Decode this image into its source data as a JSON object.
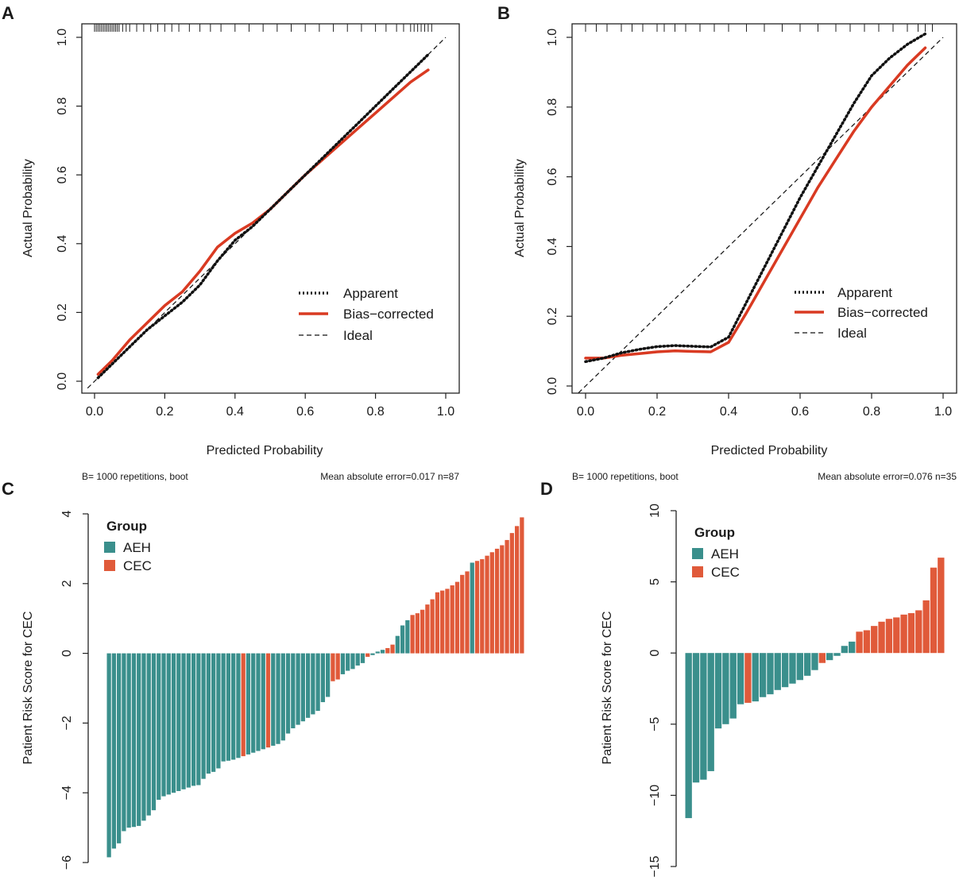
{
  "panels": {
    "A": {
      "letter": "A"
    },
    "B": {
      "letter": "B"
    },
    "C": {
      "letter": "C"
    },
    "D": {
      "letter": "D"
    }
  },
  "chart_data": [
    {
      "id": "A",
      "type": "line",
      "xlabel": "Predicted Probability",
      "ylabel": "Actual Probability",
      "xlim": [
        0,
        1
      ],
      "ylim": [
        0,
        1
      ],
      "xticks": [
        "0.0",
        "0.2",
        "0.4",
        "0.6",
        "0.8",
        "1.0"
      ],
      "yticks": [
        "0.0",
        "0.2",
        "0.4",
        "0.6",
        "0.8",
        "1.0"
      ],
      "legend": [
        "Apparent",
        "Bias−corrected",
        "Ideal"
      ],
      "footer_left": "B= 1000 repetitions, boot",
      "footer_right": "Mean absolute error=0.017 n=87",
      "series": [
        {
          "name": "Apparent",
          "x": [
            0.01,
            0.05,
            0.1,
            0.15,
            0.2,
            0.25,
            0.3,
            0.35,
            0.4,
            0.45,
            0.5,
            0.55,
            0.6,
            0.65,
            0.7,
            0.75,
            0.8,
            0.85,
            0.9,
            0.95
          ],
          "y": [
            0.01,
            0.05,
            0.1,
            0.15,
            0.19,
            0.23,
            0.28,
            0.35,
            0.41,
            0.45,
            0.5,
            0.55,
            0.6,
            0.65,
            0.7,
            0.75,
            0.8,
            0.85,
            0.9,
            0.95
          ]
        },
        {
          "name": "Bias−corrected",
          "x": [
            0.01,
            0.05,
            0.1,
            0.15,
            0.2,
            0.25,
            0.3,
            0.35,
            0.4,
            0.45,
            0.5,
            0.55,
            0.6,
            0.65,
            0.7,
            0.75,
            0.8,
            0.85,
            0.9,
            0.95
          ],
          "y": [
            0.02,
            0.06,
            0.12,
            0.17,
            0.22,
            0.26,
            0.32,
            0.39,
            0.43,
            0.46,
            0.5,
            0.55,
            0.6,
            0.645,
            0.69,
            0.735,
            0.78,
            0.825,
            0.87,
            0.905
          ]
        },
        {
          "name": "Ideal",
          "x": [
            0,
            1
          ],
          "y": [
            0,
            1
          ]
        }
      ],
      "rug": [
        0.0,
        0.005,
        0.01,
        0.015,
        0.02,
        0.025,
        0.03,
        0.035,
        0.04,
        0.045,
        0.05,
        0.055,
        0.06,
        0.065,
        0.07,
        0.08,
        0.09,
        0.1,
        0.12,
        0.14,
        0.16,
        0.18,
        0.2,
        0.22,
        0.24,
        0.27,
        0.3,
        0.33,
        0.36,
        0.4,
        0.44,
        0.48,
        0.52,
        0.56,
        0.6,
        0.64,
        0.68,
        0.72,
        0.76,
        0.8,
        0.83,
        0.86,
        0.88,
        0.9,
        0.91,
        0.92,
        0.93,
        0.94,
        0.95,
        0.96
      ]
    },
    {
      "id": "B",
      "type": "line",
      "xlabel": "Predicted Probability",
      "ylabel": "Actual Probability",
      "xlim": [
        0,
        1
      ],
      "ylim": [
        0,
        1
      ],
      "xticks": [
        "0.0",
        "0.2",
        "0.4",
        "0.6",
        "0.8",
        "1.0"
      ],
      "yticks": [
        "0.0",
        "0.2",
        "0.4",
        "0.6",
        "0.8",
        "1.0"
      ],
      "legend": [
        "Apparent",
        "Bias−corrected",
        "Ideal"
      ],
      "footer_left": "B= 1000 repetitions, boot",
      "footer_right": "Mean absolute error=0.076 n=35",
      "series": [
        {
          "name": "Apparent",
          "x": [
            0.0,
            0.05,
            0.1,
            0.15,
            0.2,
            0.25,
            0.3,
            0.35,
            0.4,
            0.45,
            0.5,
            0.55,
            0.6,
            0.65,
            0.7,
            0.75,
            0.8,
            0.85,
            0.9,
            0.95
          ],
          "y": [
            0.07,
            0.08,
            0.095,
            0.105,
            0.113,
            0.116,
            0.114,
            0.112,
            0.14,
            0.24,
            0.34,
            0.44,
            0.54,
            0.63,
            0.72,
            0.81,
            0.89,
            0.94,
            0.98,
            1.01
          ]
        },
        {
          "name": "Bias−corrected",
          "x": [
            0.0,
            0.05,
            0.1,
            0.15,
            0.2,
            0.25,
            0.3,
            0.35,
            0.4,
            0.45,
            0.5,
            0.55,
            0.6,
            0.65,
            0.7,
            0.75,
            0.8,
            0.85,
            0.9,
            0.95
          ],
          "y": [
            0.08,
            0.08,
            0.088,
            0.093,
            0.098,
            0.101,
            0.099,
            0.098,
            0.125,
            0.21,
            0.3,
            0.39,
            0.48,
            0.57,
            0.65,
            0.73,
            0.8,
            0.86,
            0.92,
            0.97
          ]
        },
        {
          "name": "Ideal",
          "x": [
            0,
            1
          ],
          "y": [
            0,
            1
          ]
        }
      ],
      "rug": [
        0.0,
        0.03,
        0.06,
        0.1,
        0.13,
        0.16,
        0.2,
        0.22,
        0.25,
        0.28,
        0.32,
        0.36,
        0.4,
        0.45,
        0.5,
        0.55,
        0.6,
        0.65,
        0.7,
        0.74,
        0.78,
        0.82,
        0.86,
        0.9,
        0.93,
        0.95,
        0.97
      ]
    },
    {
      "id": "C",
      "type": "bar",
      "ylabel": "Patient Risk Score for CEC",
      "ylim": [
        -6,
        4
      ],
      "yticks": [
        "−6",
        "−4",
        "−2",
        "0",
        "2",
        "4"
      ],
      "legend_title": "Group",
      "legend": [
        "AEH",
        "CEC"
      ],
      "colors": {
        "AEH": "#3a8f8c",
        "CEC": "#e05a3a"
      },
      "values": [
        -5.85,
        -5.6,
        -5.45,
        -5.1,
        -5.0,
        -4.98,
        -4.95,
        -4.8,
        -4.65,
        -4.5,
        -4.2,
        -4.1,
        -4.05,
        -4.0,
        -3.95,
        -3.9,
        -3.85,
        -3.8,
        -3.78,
        -3.6,
        -3.45,
        -3.4,
        -3.3,
        -3.1,
        -3.08,
        -3.05,
        -3.0,
        -2.95,
        -2.9,
        -2.85,
        -2.8,
        -2.75,
        -2.7,
        -2.65,
        -2.6,
        -2.5,
        -2.3,
        -2.15,
        -2.05,
        -1.95,
        -1.85,
        -1.75,
        -1.65,
        -1.4,
        -1.25,
        -0.8,
        -0.75,
        -0.6,
        -0.5,
        -0.45,
        -0.35,
        -0.28,
        -0.1,
        -0.05,
        0.05,
        0.1,
        0.15,
        0.25,
        0.5,
        0.8,
        0.95,
        1.1,
        1.15,
        1.25,
        1.4,
        1.55,
        1.75,
        1.8,
        1.85,
        1.95,
        2.05,
        2.25,
        2.35,
        2.6,
        2.65,
        2.7,
        2.8,
        2.9,
        3.0,
        3.1,
        3.25,
        3.45,
        3.65,
        3.9
      ],
      "groups": [
        "AEH",
        "AEH",
        "AEH",
        "AEH",
        "AEH",
        "AEH",
        "AEH",
        "AEH",
        "AEH",
        "AEH",
        "AEH",
        "AEH",
        "AEH",
        "AEH",
        "AEH",
        "AEH",
        "AEH",
        "AEH",
        "AEH",
        "AEH",
        "AEH",
        "AEH",
        "AEH",
        "AEH",
        "AEH",
        "AEH",
        "AEH",
        "CEC",
        "AEH",
        "AEH",
        "AEH",
        "AEH",
        "CEC",
        "AEH",
        "AEH",
        "AEH",
        "AEH",
        "AEH",
        "AEH",
        "AEH",
        "AEH",
        "AEH",
        "AEH",
        "AEH",
        "AEH",
        "CEC",
        "CEC",
        "AEH",
        "AEH",
        "AEH",
        "AEH",
        "AEH",
        "CEC",
        "AEH",
        "AEH",
        "AEH",
        "CEC",
        "CEC",
        "AEH",
        "AEH",
        "AEH",
        "CEC",
        "CEC",
        "CEC",
        "CEC",
        "CEC",
        "CEC",
        "CEC",
        "CEC",
        "CEC",
        "CEC",
        "CEC",
        "CEC",
        "AEH",
        "CEC",
        "CEC",
        "CEC",
        "CEC",
        "CEC",
        "CEC",
        "CEC",
        "CEC",
        "CEC",
        "CEC"
      ]
    },
    {
      "id": "D",
      "type": "bar",
      "ylabel": "Patient Risk Score for CEC",
      "ylim": [
        -15,
        10
      ],
      "yticks": [
        "−15",
        "−10",
        "−5",
        "0",
        "5",
        "10"
      ],
      "legend_title": "Group",
      "legend": [
        "AEH",
        "CEC"
      ],
      "colors": {
        "AEH": "#3a8f8c",
        "CEC": "#e05a3a"
      },
      "values": [
        -11.6,
        -9.1,
        -8.9,
        -8.3,
        -5.3,
        -5.0,
        -4.6,
        -3.6,
        -3.5,
        -3.4,
        -3.1,
        -2.9,
        -2.6,
        -2.4,
        -2.15,
        -1.9,
        -1.6,
        -1.2,
        -0.7,
        -0.5,
        -0.2,
        0.5,
        0.8,
        1.5,
        1.6,
        1.9,
        2.2,
        2.4,
        2.5,
        2.7,
        2.8,
        3.0,
        3.7,
        6.0,
        6.7
      ],
      "groups": [
        "AEH",
        "AEH",
        "AEH",
        "AEH",
        "AEH",
        "AEH",
        "AEH",
        "AEH",
        "CEC",
        "AEH",
        "AEH",
        "AEH",
        "AEH",
        "AEH",
        "AEH",
        "AEH",
        "AEH",
        "AEH",
        "CEC",
        "AEH",
        "AEH",
        "AEH",
        "AEH",
        "CEC",
        "CEC",
        "CEC",
        "CEC",
        "CEC",
        "CEC",
        "CEC",
        "CEC",
        "CEC",
        "CEC",
        "CEC",
        "CEC"
      ]
    }
  ]
}
